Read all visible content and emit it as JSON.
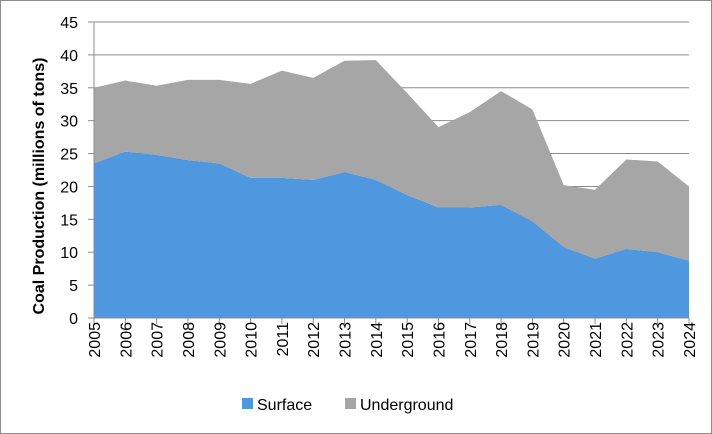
{
  "chart_data": {
    "type": "area",
    "stacked": true,
    "title": "",
    "xlabel": "",
    "ylabel": "Coal Production (millions of tons)",
    "ylim": [
      0,
      45
    ],
    "yticks": [
      0,
      5,
      10,
      15,
      20,
      25,
      30,
      35,
      40,
      45
    ],
    "grid": true,
    "legend_position": "bottom",
    "categories": [
      "2005",
      "2006",
      "2007",
      "2008",
      "2009",
      "2010",
      "2011",
      "2012",
      "2013",
      "2014",
      "2015",
      "2016",
      "2017",
      "2018",
      "2019",
      "2020",
      "2021",
      "2022",
      "2023",
      "2024"
    ],
    "series": [
      {
        "name": "Surface",
        "color": "#4f97de",
        "values": [
          23.5,
          25.3,
          24.8,
          24.0,
          23.5,
          21.3,
          21.3,
          21.0,
          22.2,
          21.0,
          18.7,
          16.8,
          16.8,
          17.2,
          14.7,
          10.8,
          9.0,
          10.5,
          10.0,
          8.7
        ]
      },
      {
        "name": "Underground",
        "color": "#a6a6a6",
        "values": [
          11.5,
          10.8,
          10.5,
          12.2,
          12.7,
          14.3,
          16.3,
          15.5,
          16.9,
          18.2,
          15.5,
          12.2,
          14.5,
          17.3,
          17.0,
          9.4,
          10.5,
          13.6,
          13.8,
          11.3
        ]
      }
    ]
  }
}
